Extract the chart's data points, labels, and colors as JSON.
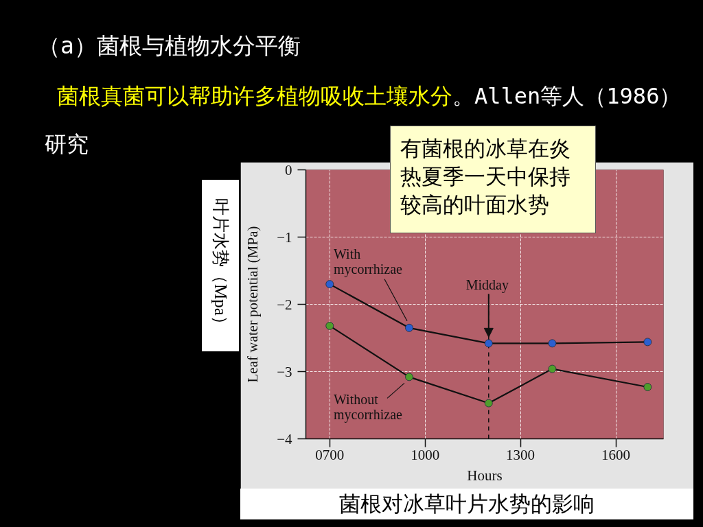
{
  "chart_data": {
    "type": "line",
    "title": "（a）菌根与植物水分平衡",
    "subtitle": "菌根真菌可以帮助许多植物吸收土壤水分",
    "xlabel": "Hours",
    "ylabel": "Leaf water potential (MPa)",
    "x": [
      700,
      950,
      1200,
      1400,
      1700
    ],
    "series": [
      {
        "name": "With mycorrhizae",
        "color": "#2b5fd0",
        "values": [
          -1.7,
          -2.35,
          -2.58,
          -2.58,
          -2.56
        ]
      },
      {
        "name": "Without mycorrhizae",
        "color": "#4f9e2c",
        "values": [
          -2.32,
          -3.08,
          -3.47,
          -2.96,
          -3.23
        ]
      }
    ],
    "xlim": [
      625,
      1750
    ],
    "xticks": [
      {
        "value": 700,
        "label": "0700"
      },
      1000,
      1300,
      1600
    ],
    "ylim": [
      -4,
      0
    ],
    "yticks": [
      0,
      {
        "value": -1,
        "label": "−1"
      },
      {
        "value": -2,
        "label": "−2"
      },
      {
        "value": -3,
        "label": "−3"
      },
      {
        "value": -4,
        "label": "−4"
      }
    ],
    "grid": true,
    "marker": "circle",
    "line_style": "solid",
    "ref_lines": [
      {
        "axis": "x",
        "value": 1200,
        "label": "Midday",
        "line_style": "dashed",
        "color": "#111111"
      }
    ],
    "annotations": [
      "。Allen等人（1986）",
      "研究",
      "叶片水势（Mpa）",
      "有菌根的冰草在炎热夏季一天中保持较高的叶面水势",
      "菌根对冰草叶片水势的影响"
    ]
  }
}
